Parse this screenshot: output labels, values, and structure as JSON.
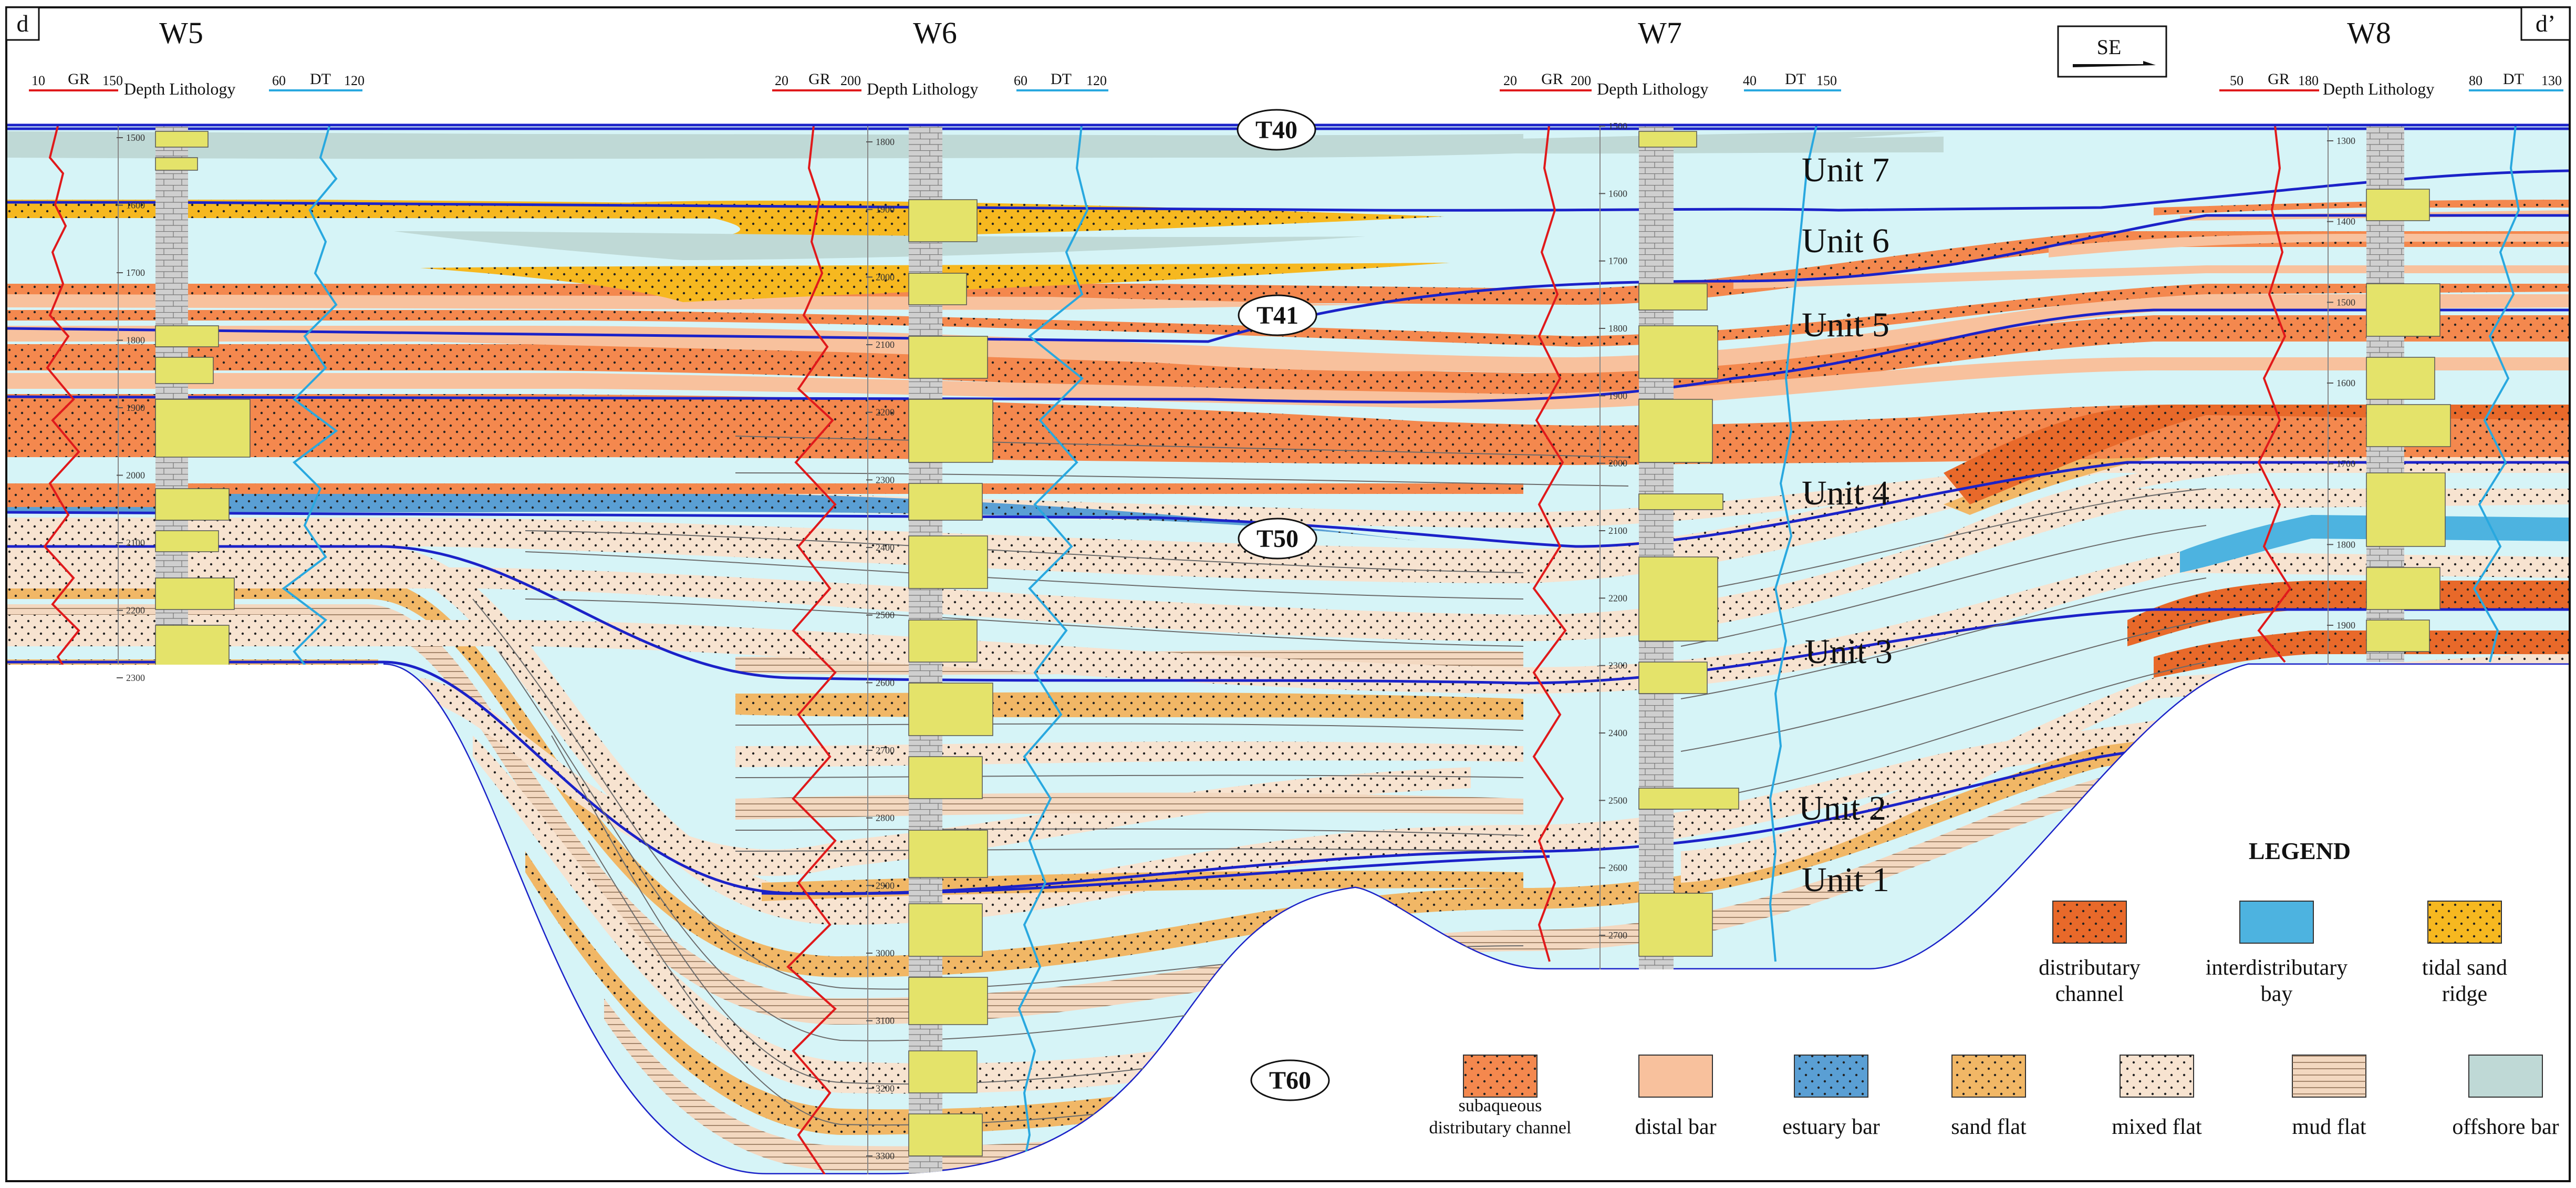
{
  "corner_labels": {
    "left": "d",
    "right": "d’"
  },
  "direction": "SE",
  "wells": [
    {
      "name": "W5",
      "gr": {
        "label": "GR",
        "min": "10",
        "max": "150"
      },
      "dt": {
        "label": "DT",
        "min": "60",
        "max": "120"
      },
      "depth_ticks": [
        "1500",
        "1600",
        "1700",
        "1800",
        "1900",
        "2000",
        "2100",
        "2200",
        "2300"
      ]
    },
    {
      "name": "W6",
      "gr": {
        "label": "GR",
        "min": "20",
        "max": "200"
      },
      "dt": {
        "label": "DT",
        "min": "60",
        "max": "120"
      },
      "depth_ticks": [
        "1800",
        "1900",
        "2000",
        "2100",
        "2200",
        "2300",
        "2400",
        "2500",
        "2600",
        "2700",
        "2800",
        "2900",
        "3000",
        "3100",
        "3200",
        "3300"
      ]
    },
    {
      "name": "W7",
      "gr": {
        "label": "GR",
        "min": "20",
        "max": "200"
      },
      "dt": {
        "label": "DT",
        "min": "40",
        "max": "150"
      },
      "depth_ticks": [
        "1500",
        "1600",
        "1700",
        "1800",
        "1900",
        "2000",
        "2100",
        "2200",
        "2300",
        "2400",
        "2500",
        "2600",
        "2700"
      ]
    },
    {
      "name": "W8",
      "gr": {
        "label": "GR",
        "min": "50",
        "max": "180"
      },
      "dt": {
        "label": "DT",
        "min": "80",
        "max": "130"
      },
      "depth_ticks": [
        "1300",
        "1400",
        "1500",
        "1600",
        "1700",
        "1800",
        "1900"
      ]
    }
  ],
  "column_header": "Depth Lithology",
  "horizons": [
    "T40",
    "T41",
    "T50",
    "T60"
  ],
  "units": [
    "Unit 7",
    "Unit 6",
    "Unit 5",
    "Unit 4",
    "Unit 3",
    "Unit 2",
    "Unit 1"
  ],
  "legend": {
    "title": "LEGEND",
    "items": [
      {
        "label": "distributary channel",
        "lines": [
          "distributary",
          "channel"
        ],
        "color": "#e8692a",
        "pattern": "dots"
      },
      {
        "label": "interdistributary bay",
        "lines": [
          "interdistributary",
          "bay"
        ],
        "color": "#4db3e0",
        "pattern": "none"
      },
      {
        "label": "tidal sand ridge",
        "lines": [
          "tidal sand",
          "ridge"
        ],
        "color": "#f6b820",
        "pattern": "dots"
      },
      {
        "label": "subaqueous distributary channel",
        "lines": [
          "subaqueous",
          "distributary channel"
        ],
        "color": "#f4884e",
        "pattern": "dots"
      },
      {
        "label": "distal bar",
        "lines": [
          "distal bar"
        ],
        "color": "#f8c19d",
        "pattern": "none"
      },
      {
        "label": "estuary bar",
        "lines": [
          "estuary bar"
        ],
        "color": "#5a9fd4",
        "pattern": "dots"
      },
      {
        "label": "sand flat",
        "lines": [
          "sand flat"
        ],
        "color": "#f1b766",
        "pattern": "dots"
      },
      {
        "label": "mixed flat",
        "lines": [
          "mixed flat"
        ],
        "color": "#f7e3d0",
        "pattern": "dots"
      },
      {
        "label": "mud flat",
        "lines": [
          "mud flat"
        ],
        "color": "#f3d8c0",
        "pattern": "lines"
      },
      {
        "label": "offshore bar",
        "lines": [
          "offshore bar"
        ],
        "color": "#bfd9d6",
        "pattern": "none"
      }
    ]
  }
}
